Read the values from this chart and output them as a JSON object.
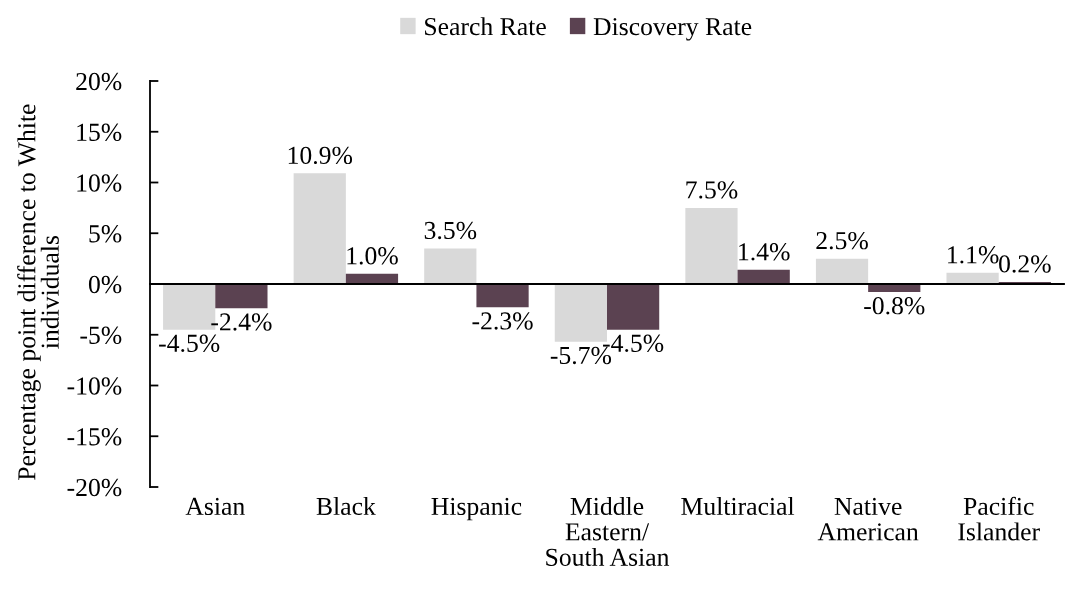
{
  "chart_data": {
    "type": "bar",
    "ylabel": "Percentage point difference to White\nindividuals",
    "categories": [
      "Asian",
      "Black",
      "Hispanic",
      "Middle\nEastern/\nSouth Asian",
      "Multiracial",
      "Native\nAmerican",
      "Pacific\nIslander"
    ],
    "series": [
      {
        "name": "Search Rate",
        "color": "#d9d9d9",
        "values": [
          -4.5,
          10.9,
          3.5,
          -5.7,
          7.5,
          2.5,
          1.1
        ],
        "value_labels": [
          "-4.5%",
          "10.9%",
          "3.5%",
          "-5.7%",
          "7.5%",
          "2.5%",
          "1.1%"
        ]
      },
      {
        "name": "Discovery Rate",
        "color": "#5b4251",
        "values": [
          -2.4,
          1.0,
          -2.3,
          -4.5,
          1.4,
          -0.8,
          0.2
        ],
        "value_labels": [
          "-2.4%",
          "1.0%",
          "-2.3%",
          "-4.5%",
          "1.4%",
          "-0.8%",
          "0.2%"
        ]
      }
    ],
    "ylim": [
      -20,
      20
    ],
    "yticks": [
      {
        "value": -20,
        "label": "-20%"
      },
      {
        "value": -15,
        "label": "-15%"
      },
      {
        "value": -10,
        "label": "-10%"
      },
      {
        "value": -5,
        "label": "-5%"
      },
      {
        "value": 0,
        "label": "0%"
      },
      {
        "value": 5,
        "label": "5%"
      },
      {
        "value": 10,
        "label": "10%"
      },
      {
        "value": 15,
        "label": "15%"
      },
      {
        "value": 20,
        "label": "20%"
      }
    ],
    "legend": "top"
  }
}
